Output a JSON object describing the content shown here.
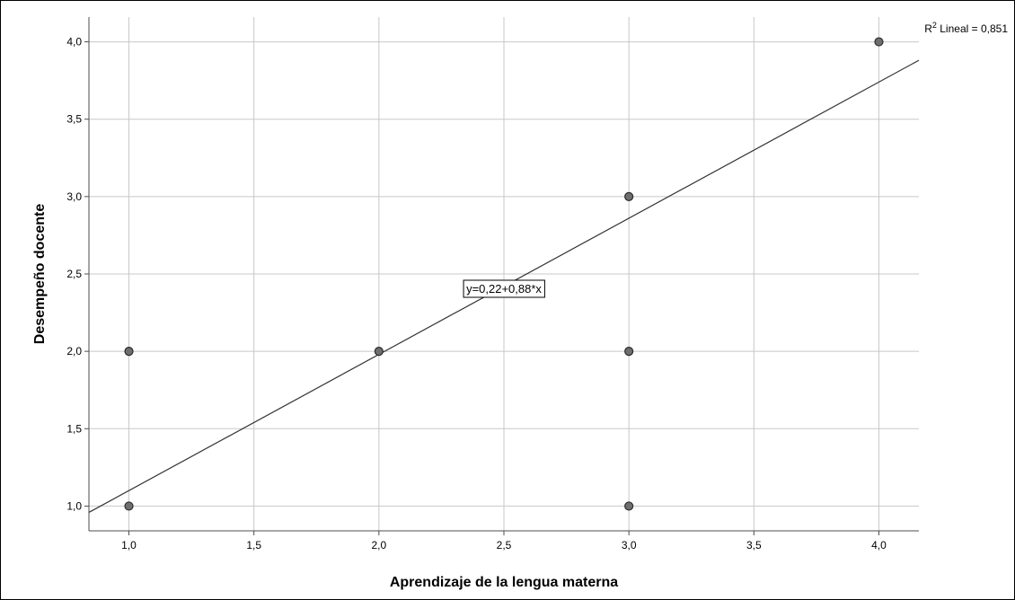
{
  "chart_data": {
    "type": "scatter",
    "title": "",
    "xlabel": "Aprendizaje de la lengua materna",
    "ylabel": "Desempeño docente",
    "xlim": [
      0.84,
      4.16
    ],
    "ylim": [
      0.84,
      4.16
    ],
    "x_ticks": [
      1.0,
      1.5,
      2.0,
      2.5,
      3.0,
      3.5,
      4.0
    ],
    "y_ticks": [
      1.0,
      1.5,
      2.0,
      2.5,
      3.0,
      3.5,
      4.0
    ],
    "x_tick_labels": [
      "1,0",
      "1,5",
      "2,0",
      "2,5",
      "3,0",
      "3,5",
      "4,0"
    ],
    "y_tick_labels": [
      "1,0",
      "1,5",
      "2,0",
      "2,5",
      "3,0",
      "3,5",
      "4,0"
    ],
    "grid": true,
    "points": [
      {
        "x": 1.0,
        "y": 1.0
      },
      {
        "x": 1.0,
        "y": 2.0
      },
      {
        "x": 2.0,
        "y": 2.0
      },
      {
        "x": 3.0,
        "y": 1.0
      },
      {
        "x": 3.0,
        "y": 2.0
      },
      {
        "x": 3.0,
        "y": 3.0
      },
      {
        "x": 4.0,
        "y": 4.0
      }
    ],
    "fit_line": {
      "intercept": 0.22,
      "slope": 0.88
    },
    "equation_label": "y=0,22+0,88*x",
    "r2_label": {
      "prefix": "R",
      "superscript": "2",
      "text": " Lineal = 0,851"
    },
    "colors": {
      "point_fill": "#6e6e6e",
      "point_stroke": "#2b2b2b",
      "grid": "#c8c8c8",
      "axis": "#4d4d4d",
      "fit_line": "#333333"
    }
  }
}
